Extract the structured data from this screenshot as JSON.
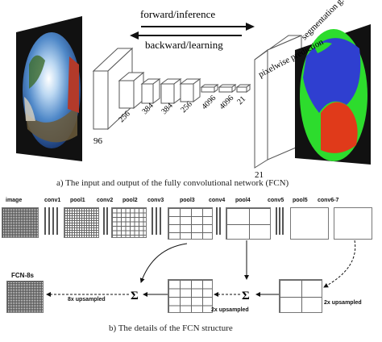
{
  "top": {
    "forward_label": "forward/inference",
    "backward_label": "backward/learning",
    "pixelwise_label": "pixelwise prediction",
    "segmentation_label": "segmentation g.t.",
    "numbers": [
      "96",
      "256",
      "384",
      "384",
      "256",
      "4096",
      "4096",
      "21",
      "21"
    ],
    "caption": "a) The input and output of the fully convolutional network (FCN)"
  },
  "bottom": {
    "layer_labels": [
      "image",
      "conv1",
      "pool1",
      "conv2",
      "pool2",
      "conv3",
      "pool3",
      "conv4",
      "pool4",
      "conv5",
      "pool5",
      "conv6-7"
    ],
    "fcn_label": "FCN-8s",
    "upsample_labels": [
      "8x upsampled",
      "2x upsampled",
      "2x upsampled"
    ],
    "sum_symbol": "Σ",
    "caption": "b) The details of the FCN structure"
  },
  "colors": {
    "seg_blue": "#2f3fd0",
    "seg_green": "#2ddc2d",
    "seg_red": "#e03a1a"
  }
}
